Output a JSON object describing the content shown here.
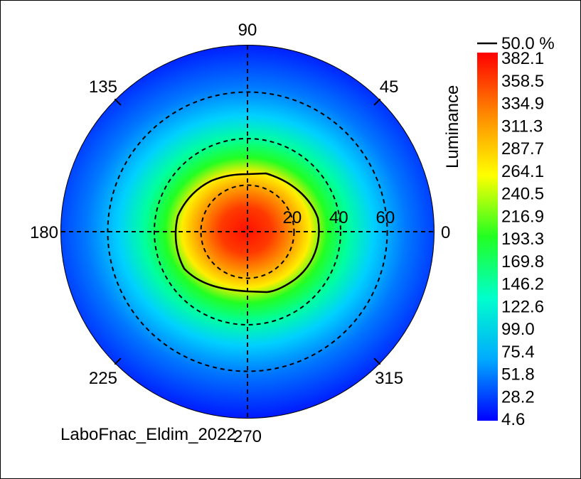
{
  "chart_data": {
    "type": "heatmap",
    "projection": "polar",
    "title": "",
    "colorbar_label": "Luminance",
    "colorbar_ticks": [
      "382.1",
      "358.5",
      "334.9",
      "311.3",
      "287.7",
      "264.1",
      "240.5",
      "216.9",
      "193.3",
      "169.8",
      "146.2",
      "122.6",
      "99.0",
      "75.4",
      "51.8",
      "28.2",
      "4.6"
    ],
    "colorbar_range": [
      4.6,
      382.1
    ],
    "contour_legend": "50.0 %",
    "contour_level_percent": 50.0,
    "angle_labels": [
      "0",
      "45",
      "90",
      "135",
      "180",
      "225",
      "270",
      "315"
    ],
    "radial_labels": [
      "20",
      "40",
      "60"
    ],
    "radial_rings": [
      20,
      40,
      60
    ],
    "peak_value": 382.1,
    "peak_location": {
      "azimuth": 0,
      "inclination": 0
    },
    "footer": "LaboFnac_Eldim_2022",
    "colormap": [
      "#0000ff",
      "#00aaff",
      "#00ffcc",
      "#22ff22",
      "#ffff00",
      "#ff8800",
      "#ff0000"
    ]
  }
}
